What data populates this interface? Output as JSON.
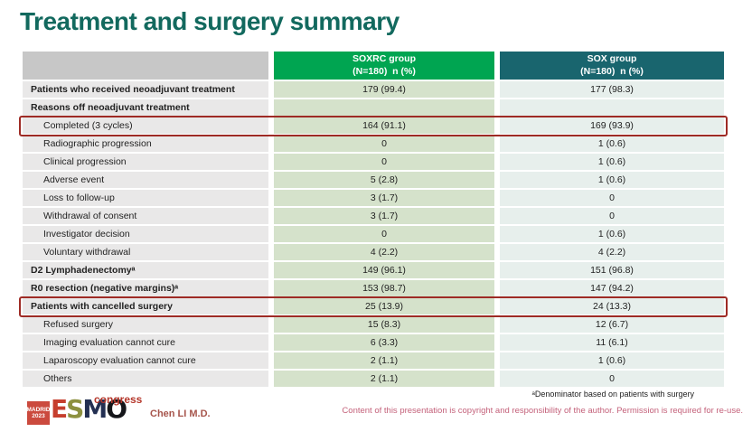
{
  "slide": {
    "title": "Treatment and surgery summary",
    "footnote": "ᵃDenominator based on patients with surgery",
    "copyright": "Content of this presentation is copyright and responsibility of the author. Permission is required for re-use.",
    "presenter": "Chen LI M.D."
  },
  "logo": {
    "badge_line1": "MADRID",
    "badge_line2": "2023",
    "letters": [
      {
        "char": "E",
        "color": "#c63f2e"
      },
      {
        "char": "S",
        "color": "#8d9140"
      },
      {
        "char": "M",
        "color": "#232f52"
      },
      {
        "char": "O",
        "color": "#15161a"
      }
    ],
    "congress": "congress"
  },
  "colors": {
    "title_color": "#12695e",
    "label_header_bg": "#c7c7c7",
    "soxrc_header_bg": "#00a551",
    "sox_header_bg": "#19656e",
    "label_bg": "#e9e8e8",
    "soxrc_bg": "#d5e2cb",
    "sox_bg": "#e7efec",
    "highlight_box": "#9e2b25",
    "badge_bg": "#cb4a3e",
    "congress_color": "#b5372b",
    "presenter_color": "#a6544b",
    "copyright_color": "#c4627b"
  },
  "table": {
    "columns": [
      {
        "title": "SOXRC group",
        "sub": "(N=180)  n (%)"
      },
      {
        "title": "SOX group",
        "sub": "(N=180)  n (%)"
      }
    ],
    "rows": [
      {
        "label": "Patients who received neoadjuvant treatment",
        "soxrc": "179 (99.4)",
        "sox": "177 (98.3)",
        "bold": true,
        "indent": false,
        "highlight": false
      },
      {
        "label": "Reasons off neoadjuvant treatment",
        "soxrc": "",
        "sox": "",
        "bold": true,
        "indent": false,
        "highlight": false
      },
      {
        "label": "Completed (3 cycles)",
        "soxrc": "164 (91.1)",
        "sox": "169 (93.9)",
        "bold": false,
        "indent": true,
        "highlight": true
      },
      {
        "label": "Radiographic progression",
        "soxrc": "0",
        "sox": "1 (0.6)",
        "bold": false,
        "indent": true,
        "highlight": false
      },
      {
        "label": "Clinical progression",
        "soxrc": "0",
        "sox": "1 (0.6)",
        "bold": false,
        "indent": true,
        "highlight": false
      },
      {
        "label": "Adverse event",
        "soxrc": "5 (2.8)",
        "sox": "1 (0.6)",
        "bold": false,
        "indent": true,
        "highlight": false
      },
      {
        "label": "Loss to follow-up",
        "soxrc": "3 (1.7)",
        "sox": "0",
        "bold": false,
        "indent": true,
        "highlight": false
      },
      {
        "label": "Withdrawal of consent",
        "soxrc": "3 (1.7)",
        "sox": "0",
        "bold": false,
        "indent": true,
        "highlight": false
      },
      {
        "label": "Investigator decision",
        "soxrc": "0",
        "sox": "1 (0.6)",
        "bold": false,
        "indent": true,
        "highlight": false
      },
      {
        "label": "Voluntary withdrawal",
        "soxrc": "4 (2.2)",
        "sox": "4 (2.2)",
        "bold": false,
        "indent": true,
        "highlight": false
      },
      {
        "label": "D2 Lymphadenectomyᵃ",
        "soxrc": "149 (96.1)",
        "sox": "151 (96.8)",
        "bold": true,
        "indent": false,
        "highlight": false
      },
      {
        "label": "R0 resection (negative margins)ᵃ",
        "soxrc": "153 (98.7)",
        "sox": "147 (94.2)",
        "bold": true,
        "indent": false,
        "highlight": false
      },
      {
        "label": "Patients with cancelled surgery",
        "soxrc": "25 (13.9)",
        "sox": "24 (13.3)",
        "bold": true,
        "indent": false,
        "highlight": true
      },
      {
        "label": "Refused surgery",
        "soxrc": "15 (8.3)",
        "sox": "12 (6.7)",
        "bold": false,
        "indent": true,
        "highlight": false
      },
      {
        "label": "Imaging evaluation cannot cure",
        "soxrc": "6 (3.3)",
        "sox": "11 (6.1)",
        "bold": false,
        "indent": true,
        "highlight": false
      },
      {
        "label": "Laparoscopy evaluation cannot cure",
        "soxrc": "2 (1.1)",
        "sox": "1 (0.6)",
        "bold": false,
        "indent": true,
        "highlight": false
      },
      {
        "label": "Others",
        "soxrc": "2 (1.1)",
        "sox": "0",
        "bold": false,
        "indent": true,
        "highlight": false
      }
    ]
  }
}
